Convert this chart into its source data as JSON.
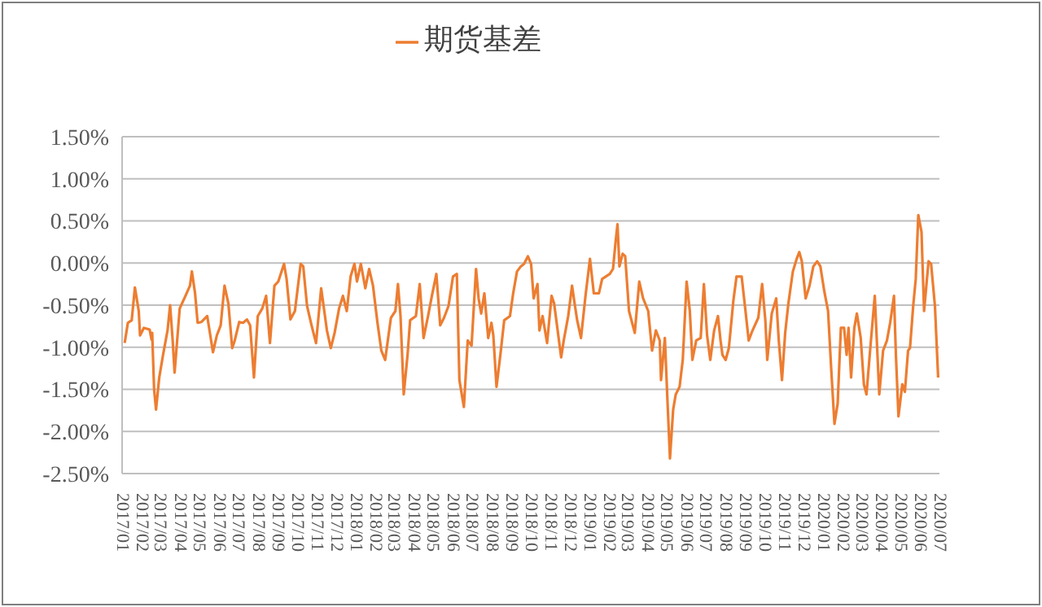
{
  "chart_data": {
    "type": "line",
    "legend": "top",
    "grid": "y",
    "line_style": "solid",
    "x": [
      "2017-01-05",
      "2017-01-10",
      "2017-01-16",
      "2017-01-21",
      "2017-01-27",
      "2017-01-29",
      "2017-02-04",
      "2017-02-13",
      "2017-02-16",
      "2017-02-17",
      "2017-02-20",
      "2017-02-23",
      "2017-02-28",
      "2017-03-06",
      "2017-03-13",
      "2017-03-17",
      "2017-03-21",
      "2017-03-24",
      "2017-04-01",
      "2017-04-10",
      "2017-04-17",
      "2017-04-20",
      "2017-04-25",
      "2017-04-29",
      "2017-05-05",
      "2017-05-14",
      "2017-05-23",
      "2017-05-29",
      "2017-06-04",
      "2017-06-10",
      "2017-06-16",
      "2017-06-22",
      "2017-06-26",
      "2017-07-03",
      "2017-07-09",
      "2017-07-15",
      "2017-07-20",
      "2017-07-26",
      "2017-08-01",
      "2017-08-08",
      "2017-08-14",
      "2017-08-20",
      "2017-08-27",
      "2017-09-02",
      "2017-09-11",
      "2017-09-15",
      "2017-09-21",
      "2017-09-28",
      "2017-10-07",
      "2017-10-11",
      "2017-10-17",
      "2017-10-24",
      "2017-10-31",
      "2017-11-08",
      "2017-11-17",
      "2017-11-23",
      "2017-11-29",
      "2017-12-06",
      "2017-12-12",
      "2017-12-18",
      "2017-12-24",
      "2017-12-30",
      "2018-01-03",
      "2018-01-09",
      "2018-01-16",
      "2018-01-22",
      "2018-01-28",
      "2018-02-04",
      "2018-02-10",
      "2018-02-16",
      "2018-02-25",
      "2018-03-04",
      "2018-03-08",
      "2018-03-12",
      "2018-03-17",
      "2018-03-23",
      "2018-03-27",
      "2018-04-05",
      "2018-04-11",
      "2018-04-17",
      "2018-04-24",
      "2018-04-30",
      "2018-05-07",
      "2018-05-13",
      "2018-05-19",
      "2018-05-26",
      "2018-06-02",
      "2018-06-08",
      "2018-06-12",
      "2018-06-19",
      "2018-06-25",
      "2018-07-01",
      "2018-07-08",
      "2018-07-12",
      "2018-07-16",
      "2018-07-21",
      "2018-07-27",
      "2018-08-01",
      "2018-08-04",
      "2018-08-09",
      "2018-08-15",
      "2018-08-21",
      "2018-08-30",
      "2018-09-04",
      "2018-09-10",
      "2018-09-16",
      "2018-09-21",
      "2018-09-27",
      "2018-10-02",
      "2018-10-06",
      "2018-10-12",
      "2018-10-15",
      "2018-10-20",
      "2018-10-27",
      "2018-11-03",
      "2018-11-07",
      "2018-11-18",
      "2018-11-22",
      "2018-11-29",
      "2018-12-05",
      "2018-12-09",
      "2018-12-13",
      "2018-12-19",
      "2018-12-26",
      "2019-01-02",
      "2019-01-08",
      "2019-01-16",
      "2019-01-21",
      "2019-02-02",
      "2019-02-07",
      "2019-02-11",
      "2019-02-14",
      "2019-02-17",
      "2019-02-22",
      "2019-02-26",
      "2019-03-04",
      "2019-03-13",
      "2019-03-20",
      "2019-03-26",
      "2019-04-03",
      "2019-04-09",
      "2019-04-15",
      "2019-04-21",
      "2019-04-23",
      "2019-04-29",
      "2019-05-03",
      "2019-05-07",
      "2019-05-12",
      "2019-05-16",
      "2019-05-22",
      "2019-05-27",
      "2019-06-02",
      "2019-06-07",
      "2019-06-11",
      "2019-06-17",
      "2019-06-24",
      "2019-06-29",
      "2019-07-04",
      "2019-07-09",
      "2019-07-15",
      "2019-07-21",
      "2019-07-25",
      "2019-07-28",
      "2019-08-02",
      "2019-08-07",
      "2019-08-14",
      "2019-08-19",
      "2019-08-27",
      "2019-09-02",
      "2019-09-07",
      "2019-09-13",
      "2019-09-22",
      "2019-09-28",
      "2019-10-03",
      "2019-10-06",
      "2019-10-13",
      "2019-10-20",
      "2019-10-24",
      "2019-10-29",
      "2019-11-03",
      "2019-11-08",
      "2019-11-15",
      "2019-11-21",
      "2019-11-25",
      "2019-11-29",
      "2019-12-05",
      "2019-12-11",
      "2019-12-17",
      "2019-12-23",
      "2019-12-28",
      "2020-01-03",
      "2020-01-09",
      "2020-01-14",
      "2020-01-19",
      "2020-01-24",
      "2020-01-29",
      "2020-02-03",
      "2020-02-07",
      "2020-02-10",
      "2020-02-14",
      "2020-02-19",
      "2020-02-23",
      "2020-02-29",
      "2020-03-05",
      "2020-03-09",
      "2020-03-16",
      "2020-03-22",
      "2020-03-29",
      "2020-04-04",
      "2020-04-10",
      "2020-04-15",
      "2020-04-21",
      "2020-04-24",
      "2020-04-28",
      "2020-05-04",
      "2020-05-08",
      "2020-05-13",
      "2020-05-16",
      "2020-05-21",
      "2020-05-25",
      "2020-05-29",
      "2020-06-03",
      "2020-06-07",
      "2020-06-14",
      "2020-06-18",
      "2020-06-24",
      "2020-06-29"
    ],
    "series": [
      {
        "name": "期货基差",
        "color": "#ed7d31",
        "values": [
          -0.95,
          -0.71,
          -0.68,
          -0.29,
          -0.57,
          -0.86,
          -0.77,
          -0.79,
          -0.91,
          -0.83,
          -1.5,
          -1.74,
          -1.36,
          -1.09,
          -0.8,
          -0.5,
          -0.92,
          -1.3,
          -0.54,
          -0.39,
          -0.27,
          -0.1,
          -0.36,
          -0.71,
          -0.7,
          -0.63,
          -1.06,
          -0.86,
          -0.74,
          -0.27,
          -0.48,
          -1.01,
          -0.92,
          -0.7,
          -0.71,
          -0.67,
          -0.74,
          -1.36,
          -0.63,
          -0.54,
          -0.39,
          -0.95,
          -0.27,
          -0.22,
          -0.01,
          -0.19,
          -0.67,
          -0.57,
          -0.01,
          -0.04,
          -0.51,
          -0.74,
          -0.95,
          -0.3,
          -0.8,
          -1.01,
          -0.83,
          -0.54,
          -0.39,
          -0.57,
          -0.16,
          -0.01,
          -0.22,
          -0.01,
          -0.3,
          -0.07,
          -0.27,
          -0.71,
          -1.04,
          -1.15,
          -0.65,
          -0.57,
          -0.25,
          -0.63,
          -1.56,
          -1.09,
          -0.68,
          -0.63,
          -0.25,
          -0.89,
          -0.63,
          -0.39,
          -0.13,
          -0.74,
          -0.65,
          -0.51,
          -0.16,
          -0.13,
          -1.39,
          -1.71,
          -0.92,
          -0.98,
          -0.07,
          -0.42,
          -0.6,
          -0.36,
          -0.89,
          -0.71,
          -0.86,
          -1.47,
          -1.09,
          -0.68,
          -0.63,
          -0.36,
          -0.1,
          -0.04,
          -0.01,
          0.08,
          -0.01,
          -0.42,
          -0.25,
          -0.8,
          -0.63,
          -0.95,
          -0.39,
          -0.48,
          -1.12,
          -0.92,
          -0.63,
          -0.27,
          -0.48,
          -0.68,
          -0.89,
          -0.39,
          0.05,
          -0.36,
          -0.36,
          -0.19,
          -0.13,
          -0.07,
          0.25,
          0.46,
          -0.04,
          0.11,
          0.08,
          -0.57,
          -0.83,
          -0.22,
          -0.42,
          -0.57,
          -1.04,
          -0.8,
          -0.92,
          -1.39,
          -0.89,
          -1.62,
          -2.32,
          -1.74,
          -1.56,
          -1.47,
          -1.15,
          -0.22,
          -0.57,
          -1.15,
          -0.92,
          -0.89,
          -0.25,
          -0.86,
          -1.15,
          -0.8,
          -0.63,
          -0.92,
          -1.09,
          -1.15,
          -1.01,
          -0.45,
          -0.16,
          -0.16,
          -0.57,
          -0.92,
          -0.8,
          -0.65,
          -0.25,
          -0.68,
          -1.15,
          -0.6,
          -0.42,
          -0.92,
          -1.39,
          -0.83,
          -0.48,
          -0.1,
          0.05,
          0.13,
          0.02,
          -0.42,
          -0.27,
          -0.04,
          0.02,
          -0.04,
          -0.33,
          -0.57,
          -1.27,
          -1.91,
          -1.67,
          -0.77,
          -0.77,
          -1.09,
          -0.77,
          -1.36,
          -0.77,
          -0.6,
          -0.89,
          -1.44,
          -1.56,
          -0.92,
          -0.39,
          -1.56,
          -1.04,
          -0.92,
          -0.71,
          -0.39,
          -1.09,
          -1.82,
          -1.44,
          -1.53,
          -1.04,
          -1.01,
          -0.51,
          -0.19,
          0.57,
          0.37,
          -0.57,
          0.02,
          -0.01,
          -0.51,
          -1.36
        ]
      }
    ],
    "ylim": [
      -2.5,
      1.5
    ],
    "yticks": [
      {
        "value": -2.5,
        "label": "-2.50%"
      },
      {
        "value": -2,
        "label": "-2.00%"
      },
      {
        "value": -1.5,
        "label": "-1.50%"
      },
      {
        "value": -1,
        "label": "-1.00%"
      },
      {
        "value": -0.5,
        "label": "-0.50%"
      },
      {
        "value": 0,
        "label": "0.00%"
      },
      {
        "value": 0.5,
        "label": "0.50%"
      },
      {
        "value": 1,
        "label": "1.00%"
      },
      {
        "value": 1.5,
        "label": "1.50%"
      }
    ],
    "xlim": [
      "2017-01-01",
      "2020-07-01"
    ],
    "xticks": [
      {
        "value": "2017-01",
        "label": "2017/01"
      },
      {
        "value": "2017-02",
        "label": "2017/02"
      },
      {
        "value": "2017-03",
        "label": "2017/03"
      },
      {
        "value": "2017-04",
        "label": "2017/04"
      },
      {
        "value": "2017-05",
        "label": "2017/05"
      },
      {
        "value": "2017-06",
        "label": "2017/06"
      },
      {
        "value": "2017-07",
        "label": "2017/07"
      },
      {
        "value": "2017-08",
        "label": "2017/08"
      },
      {
        "value": "2017-09",
        "label": "2017/09"
      },
      {
        "value": "2017-10",
        "label": "2017/10"
      },
      {
        "value": "2017-11",
        "label": "2017/11"
      },
      {
        "value": "2017-12",
        "label": "2017/12"
      },
      {
        "value": "2018-01",
        "label": "2018/01"
      },
      {
        "value": "2018-02",
        "label": "2018/02"
      },
      {
        "value": "2018-03",
        "label": "2018/03"
      },
      {
        "value": "2018-04",
        "label": "2018/04"
      },
      {
        "value": "2018-05",
        "label": "2018/05"
      },
      {
        "value": "2018-06",
        "label": "2018/06"
      },
      {
        "value": "2018-07",
        "label": "2018/07"
      },
      {
        "value": "2018-08",
        "label": "2018/08"
      },
      {
        "value": "2018-09",
        "label": "2018/09"
      },
      {
        "value": "2018-10",
        "label": "2018/10"
      },
      {
        "value": "2018-11",
        "label": "2018/11"
      },
      {
        "value": "2018-12",
        "label": "2018/12"
      },
      {
        "value": "2019-01",
        "label": "2019/01"
      },
      {
        "value": "2019-02",
        "label": "2019/02"
      },
      {
        "value": "2019-03",
        "label": "2019/03"
      },
      {
        "value": "2019-04",
        "label": "2019/04"
      },
      {
        "value": "2019-05",
        "label": "2019/05"
      },
      {
        "value": "2019-06",
        "label": "2019/06"
      },
      {
        "value": "2019-07",
        "label": "2019/07"
      },
      {
        "value": "2019-08",
        "label": "2019/08"
      },
      {
        "value": "2019-09",
        "label": "2019/09"
      },
      {
        "value": "2019-10",
        "label": "2019/10"
      },
      {
        "value": "2019-11",
        "label": "2019/11"
      },
      {
        "value": "2019-12",
        "label": "2019/12"
      },
      {
        "value": "2020-01",
        "label": "2020/01"
      },
      {
        "value": "2020-02",
        "label": "2020/02"
      },
      {
        "value": "2020-03",
        "label": "2020/03"
      },
      {
        "value": "2020-04",
        "label": "2020/04"
      },
      {
        "value": "2020-05",
        "label": "2020/05"
      },
      {
        "value": "2020-06",
        "label": "2020/06"
      },
      {
        "value": "2020-07",
        "label": "2020/07"
      }
    ]
  }
}
